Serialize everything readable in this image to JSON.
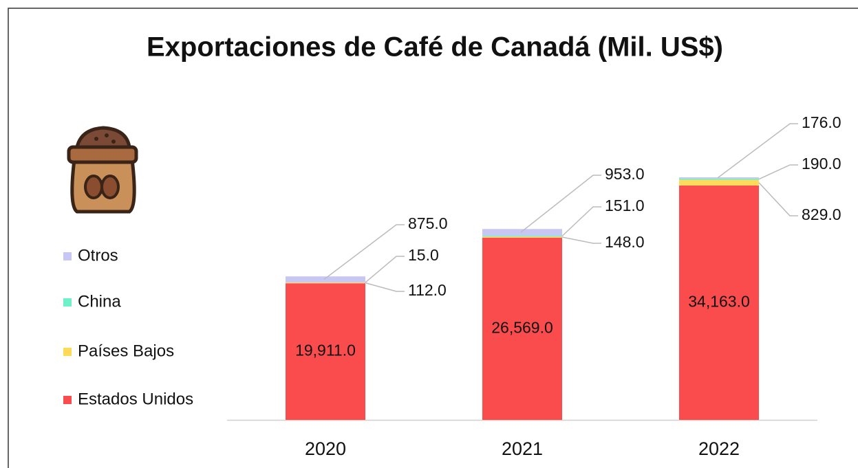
{
  "chart_data": {
    "type": "stacked_bar",
    "title": "Exportaciones de Café de Canadá (Mil. US$)",
    "categories": [
      "2020",
      "2021",
      "2022"
    ],
    "series": [
      {
        "name": "Estados Unidos",
        "color": "#fa4c4c",
        "values": [
          19911,
          26569,
          34163
        ],
        "value_labels": [
          "19,911.0",
          "26,569.0",
          "34,163.0"
        ]
      },
      {
        "name": "Países Bajos",
        "color": "#ffd95a",
        "values": [
          112,
          148,
          829
        ],
        "value_labels": [
          "112.0",
          "148.0",
          "829.0"
        ]
      },
      {
        "name": "China",
        "color": "#6ff0c9",
        "values": [
          15,
          151,
          190
        ],
        "value_labels": [
          "15.0",
          "151.0",
          "190.0"
        ]
      },
      {
        "name": "Otros",
        "color": "#c8c6f5",
        "values": [
          875,
          953,
          176
        ],
        "value_labels": [
          "875.0",
          "953.0",
          "176.0"
        ]
      }
    ],
    "legend": "left"
  }
}
